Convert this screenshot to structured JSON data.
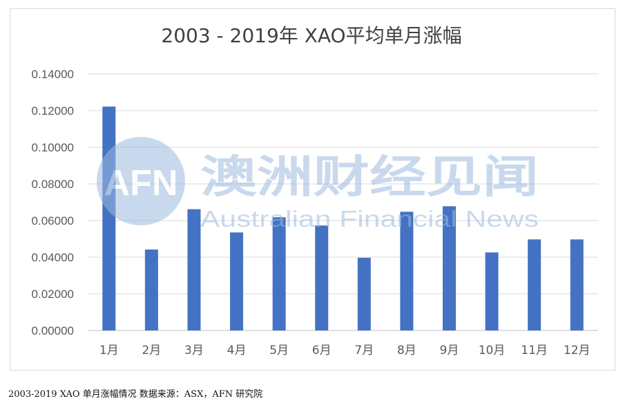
{
  "chart_data": {
    "type": "bar",
    "title": "2003 - 2019年 XAO平均单月涨幅",
    "categories": [
      "1月",
      "2月",
      "3月",
      "4月",
      "5月",
      "6月",
      "7月",
      "8月",
      "9月",
      "10月",
      "11月",
      "12月"
    ],
    "values": [
      0.1222,
      0.0442,
      0.0662,
      0.0535,
      0.0618,
      0.0573,
      0.0397,
      0.0648,
      0.0678,
      0.0426,
      0.0497,
      0.0497
    ],
    "yticks": [
      "0.00000",
      "0.02000",
      "0.04000",
      "0.06000",
      "0.08000",
      "0.10000",
      "0.12000",
      "0.14000"
    ],
    "ylim": [
      0,
      0.14
    ],
    "grid": true,
    "bar_color": "#4472c4",
    "xlabel": "",
    "ylabel": ""
  },
  "watermark": {
    "logo_text": "AFN",
    "name_cn": "澳洲财经见闻",
    "name_en": "Australian Financial News",
    "color": "#9dbbe0"
  },
  "caption": "2003-2019 XAO 单月涨幅情况   数据来源：ASX，AFN 研究院"
}
